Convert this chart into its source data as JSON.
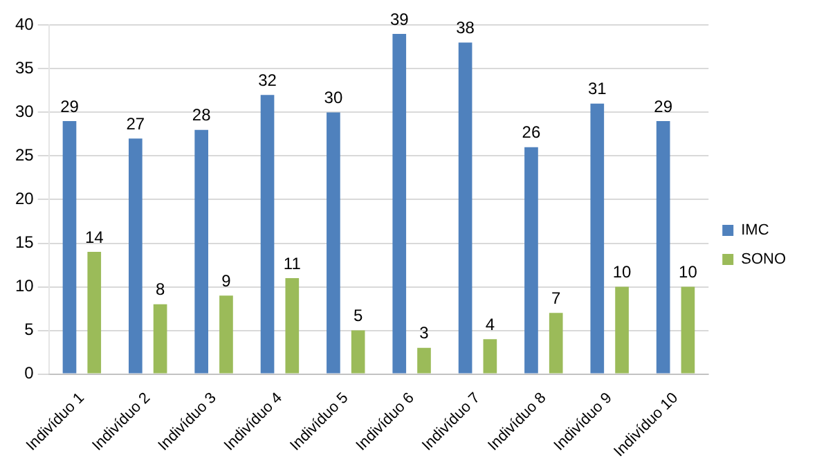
{
  "chart_data": {
    "type": "bar",
    "categories": [
      "Indivíduo 1",
      "Indivíduo 2",
      "Indivíduo 3",
      "Indivíduo 4",
      "Indivíduo 5",
      "Indivíduo 6",
      "Indivíduo 7",
      "Indivíduo 8",
      "Indivíduo 9",
      "Indivíduo 10"
    ],
    "series": [
      {
        "name": "IMC",
        "color": "#4f81bd",
        "values": [
          29,
          27,
          28,
          32,
          30,
          39,
          38,
          26,
          31,
          29
        ]
      },
      {
        "name": "SONO",
        "color": "#9bbb59",
        "values": [
          14,
          8,
          9,
          11,
          5,
          3,
          4,
          7,
          10,
          10
        ]
      }
    ],
    "ylim": [
      0,
      40
    ],
    "yticks": [
      0,
      5,
      10,
      15,
      20,
      25,
      30,
      35,
      40
    ],
    "grid": "y",
    "legend": "right",
    "data_labels": true
  }
}
